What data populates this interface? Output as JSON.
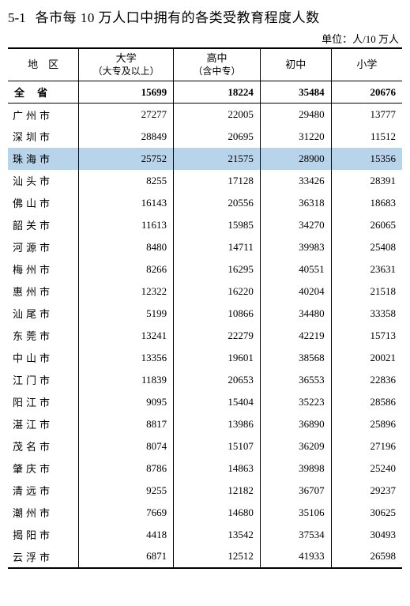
{
  "title": {
    "number": "5-1",
    "text": "各市每 10 万人口中拥有的各类受教育程度人数"
  },
  "unit": "单位：人/10 万人",
  "header": {
    "region": "地　区",
    "university": "大学",
    "university_sub": "（大专及以上）",
    "highschool": "高中",
    "highschool_sub": "（含中专）",
    "middleschool": "初中",
    "primary": "小学"
  },
  "total_row": {
    "region": "全省",
    "university": "15699",
    "highschool": "18224",
    "middleschool": "35484",
    "primary": "20676"
  },
  "rows": [
    {
      "region": "广州市",
      "university": "27277",
      "highschool": "22005",
      "middleschool": "29480",
      "primary": "13777",
      "highlight": false
    },
    {
      "region": "深圳市",
      "university": "28849",
      "highschool": "20695",
      "middleschool": "31220",
      "primary": "11512",
      "highlight": false
    },
    {
      "region": "珠海市",
      "university": "25752",
      "highschool": "21575",
      "middleschool": "28900",
      "primary": "15356",
      "highlight": true
    },
    {
      "region": "汕头市",
      "university": "8255",
      "highschool": "17128",
      "middleschool": "33426",
      "primary": "28391",
      "highlight": false
    },
    {
      "region": "佛山市",
      "university": "16143",
      "highschool": "20556",
      "middleschool": "36318",
      "primary": "18683",
      "highlight": false
    },
    {
      "region": "韶关市",
      "university": "11613",
      "highschool": "15985",
      "middleschool": "34270",
      "primary": "26065",
      "highlight": false
    },
    {
      "region": "河源市",
      "university": "8480",
      "highschool": "14711",
      "middleschool": "39983",
      "primary": "25408",
      "highlight": false
    },
    {
      "region": "梅州市",
      "university": "8266",
      "highschool": "16295",
      "middleschool": "40551",
      "primary": "23631",
      "highlight": false
    },
    {
      "region": "惠州市",
      "university": "12322",
      "highschool": "16220",
      "middleschool": "40204",
      "primary": "21518",
      "highlight": false
    },
    {
      "region": "汕尾市",
      "university": "5199",
      "highschool": "10866",
      "middleschool": "34480",
      "primary": "33358",
      "highlight": false
    },
    {
      "region": "东莞市",
      "university": "13241",
      "highschool": "22279",
      "middleschool": "42219",
      "primary": "15713",
      "highlight": false
    },
    {
      "region": "中山市",
      "university": "13356",
      "highschool": "19601",
      "middleschool": "38568",
      "primary": "20021",
      "highlight": false
    },
    {
      "region": "江门市",
      "university": "11839",
      "highschool": "20653",
      "middleschool": "36553",
      "primary": "22836",
      "highlight": false
    },
    {
      "region": "阳江市",
      "university": "9095",
      "highschool": "15404",
      "middleschool": "35223",
      "primary": "28586",
      "highlight": false
    },
    {
      "region": "湛江市",
      "university": "8817",
      "highschool": "13986",
      "middleschool": "36890",
      "primary": "25896",
      "highlight": false
    },
    {
      "region": "茂名市",
      "university": "8074",
      "highschool": "15107",
      "middleschool": "36209",
      "primary": "27196",
      "highlight": false
    },
    {
      "region": "肇庆市",
      "university": "8786",
      "highschool": "14863",
      "middleschool": "39898",
      "primary": "25240",
      "highlight": false
    },
    {
      "region": "清远市",
      "university": "9255",
      "highschool": "12182",
      "middleschool": "36707",
      "primary": "29237",
      "highlight": false
    },
    {
      "region": "潮州市",
      "university": "7669",
      "highschool": "14680",
      "middleschool": "35106",
      "primary": "30625",
      "highlight": false
    },
    {
      "region": "揭阳市",
      "university": "4418",
      "highschool": "13542",
      "middleschool": "37534",
      "primary": "30493",
      "highlight": false
    },
    {
      "region": "云浮市",
      "university": "6871",
      "highschool": "12512",
      "middleschool": "41933",
      "primary": "26598",
      "highlight": false
    }
  ],
  "colors": {
    "highlight_bg": "#b8d4ea",
    "text": "#000000",
    "border": "#000000",
    "background": "#ffffff"
  }
}
